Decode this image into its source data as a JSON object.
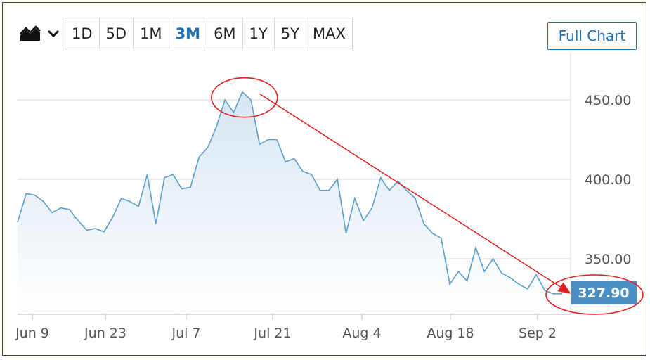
{
  "toolbar": {
    "chart_type_icon": "area-chart-icon",
    "dropdown_icon": "chevron-down-icon",
    "ranges": [
      "1D",
      "5D",
      "1M",
      "3M",
      "6M",
      "1Y",
      "5Y",
      "MAX"
    ],
    "active_range": "3M",
    "full_chart_label": "Full Chart"
  },
  "colors": {
    "line": "#5b9ec9",
    "fill_top": "#d7e6f2",
    "fill_bottom": "#ffffff",
    "active": "#1f6fb5",
    "price_badge": "#4a90c4",
    "annotation": "#e02020"
  },
  "chart_data": {
    "type": "line",
    "title": "",
    "xlabel": "",
    "ylabel": "",
    "x_ticks": [
      "Jun 9",
      "Jun 23",
      "Jul 7",
      "Jul 21",
      "Aug 4",
      "Aug 18",
      "Sep 2"
    ],
    "y_ticks": [
      "450.00",
      "400.00",
      "350.00"
    ],
    "ylim": [
      315,
      480
    ],
    "current_price": "327.90",
    "series": [
      {
        "values": [
          373,
          391,
          390,
          386,
          379,
          382,
          381,
          374,
          368,
          369,
          367,
          376,
          388,
          386,
          383,
          403,
          372,
          401,
          403,
          394,
          395,
          414,
          420,
          433,
          450,
          442,
          455,
          450,
          422,
          425,
          425,
          411,
          413,
          405,
          403,
          393,
          393,
          400,
          366,
          388,
          374,
          382,
          401,
          393,
          399,
          393,
          388,
          372,
          366,
          363,
          334,
          342,
          336,
          357,
          342,
          350,
          341,
          338,
          334,
          331,
          340,
          330,
          328,
          328
        ]
      }
    ],
    "annotations": {
      "peak_circle_index": 26,
      "arrow_from": "peak",
      "arrow_to": "current_price"
    }
  }
}
